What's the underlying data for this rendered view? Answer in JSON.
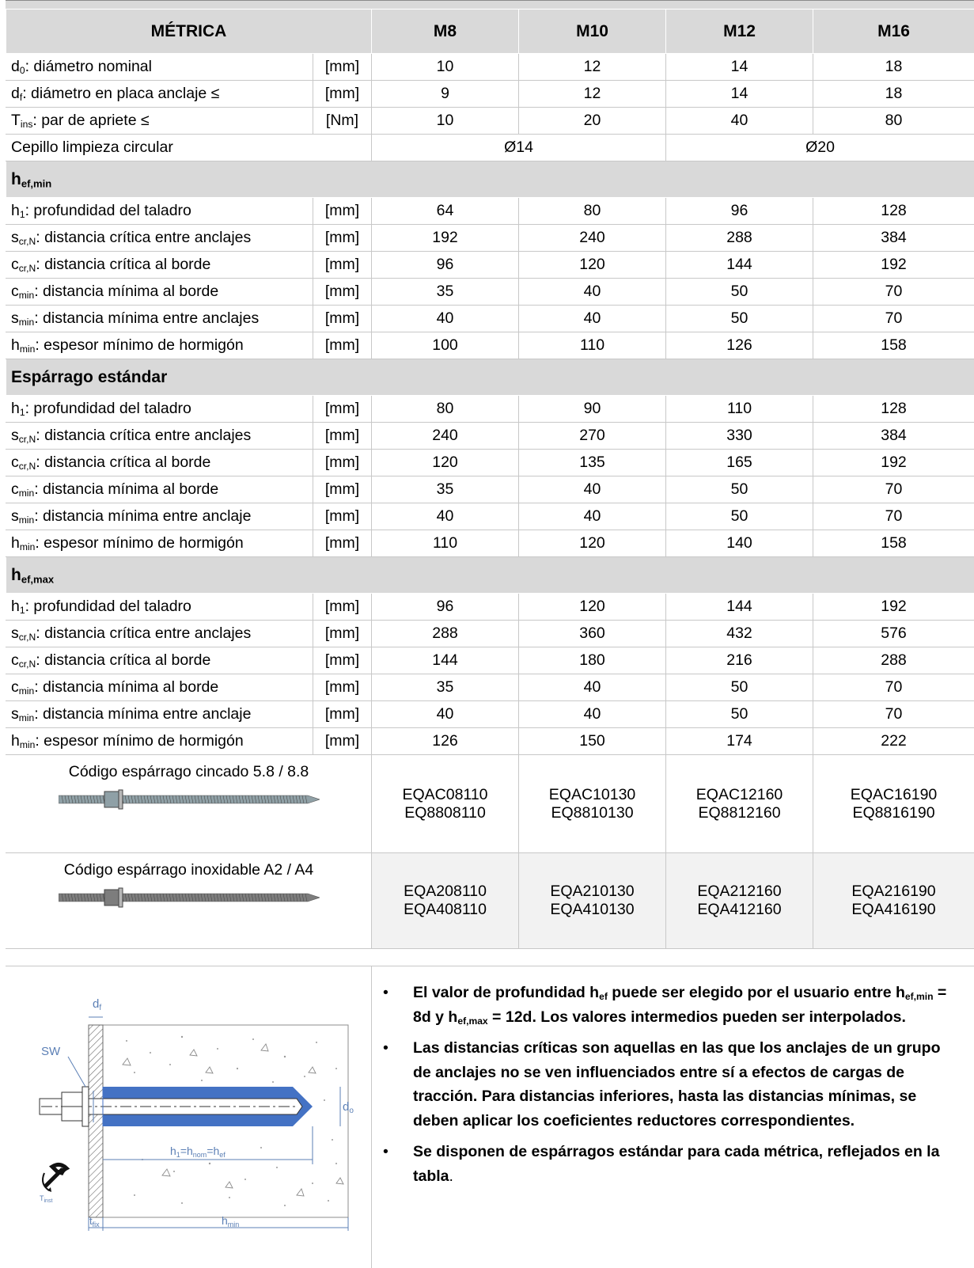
{
  "header": {
    "metric": "MÉTRICA",
    "cols": [
      "M8",
      "M10",
      "M12",
      "M16"
    ]
  },
  "basic_rows": [
    {
      "sym": "d",
      "sub": "0",
      "text": ": diámetro nominal",
      "unit": "[mm]",
      "vals": [
        "10",
        "12",
        "14",
        "18"
      ]
    },
    {
      "sym": "d",
      "sub": "f",
      "text": ": diámetro en placa anclaje ≤",
      "unit": "[mm]",
      "vals": [
        "9",
        "12",
        "14",
        "18"
      ]
    },
    {
      "sym": "T",
      "sub": "ins",
      "text": ": par de apriete ≤",
      "unit": "[Nm]",
      "vals": [
        "10",
        "20",
        "40",
        "80"
      ]
    }
  ],
  "brush": {
    "label": "Cepillo limpieza circular",
    "small": "Ø14",
    "large": "Ø20"
  },
  "sections": [
    {
      "title": "h",
      "title_sub": "ef,min",
      "rows": [
        {
          "sym": "h",
          "sub": "1",
          "text": ": profundidad del taladro",
          "unit": "[mm]",
          "vals": [
            "64",
            "80",
            "96",
            "128"
          ]
        },
        {
          "sym": "s",
          "sub": "cr,N",
          "text": ": distancia crítica entre anclajes",
          "unit": "[mm]",
          "vals": [
            "192",
            "240",
            "288",
            "384"
          ]
        },
        {
          "sym": "c",
          "sub": "cr,N",
          "text": ": distancia crítica al borde",
          "unit": "[mm]",
          "vals": [
            "96",
            "120",
            "144",
            "192"
          ]
        },
        {
          "sym": "c",
          "sub": "min",
          "text": ": distancia mínima al borde",
          "unit": "[mm]",
          "vals": [
            "35",
            "40",
            "50",
            "70"
          ]
        },
        {
          "sym": "s",
          "sub": "min",
          "text": ": distancia mínima entre anclajes",
          "unit": "[mm]",
          "vals": [
            "40",
            "40",
            "50",
            "70"
          ]
        },
        {
          "sym": "h",
          "sub": "min",
          "text": ": espesor mínimo de hormigón",
          "unit": "[mm]",
          "vals": [
            "100",
            "110",
            "126",
            "158"
          ]
        }
      ]
    },
    {
      "title": "Espárrago estándar",
      "title_sub": "",
      "rows": [
        {
          "sym": "h",
          "sub": "1",
          "text": ": profundidad del taladro",
          "unit": "[mm]",
          "vals": [
            "80",
            "90",
            "110",
            "128"
          ]
        },
        {
          "sym": "s",
          "sub": "cr,N",
          "text": ": distancia crítica entre anclajes",
          "unit": "[mm]",
          "vals": [
            "240",
            "270",
            "330",
            "384"
          ]
        },
        {
          "sym": "c",
          "sub": "cr,N",
          "text": ": distancia crítica al borde",
          "unit": "[mm]",
          "vals": [
            "120",
            "135",
            "165",
            "192"
          ]
        },
        {
          "sym": "c",
          "sub": "min",
          "text": ": distancia mínima al borde",
          "unit": "[mm]",
          "vals": [
            "35",
            "40",
            "50",
            "70"
          ]
        },
        {
          "sym": "s",
          "sub": "min",
          "text": ": distancia mínima entre anclaje",
          "unit": "[mm]",
          "vals": [
            "40",
            "40",
            "50",
            "70"
          ]
        },
        {
          "sym": "h",
          "sub": "min",
          "text": ": espesor mínimo de hormigón",
          "unit": "[mm]",
          "vals": [
            "110",
            "120",
            "140",
            "158"
          ]
        }
      ]
    },
    {
      "title": "h",
      "title_sub": "ef,max",
      "rows": [
        {
          "sym": "h",
          "sub": "1",
          "text": ": profundidad del taladro",
          "unit": "[mm]",
          "vals": [
            "96",
            "120",
            "144",
            "192"
          ]
        },
        {
          "sym": "s",
          "sub": "cr,N",
          "text": ": distancia crítica entre anclajes",
          "unit": "[mm]",
          "vals": [
            "288",
            "360",
            "432",
            "576"
          ]
        },
        {
          "sym": "c",
          "sub": "cr,N",
          "text": ": distancia crítica al borde",
          "unit": "[mm]",
          "vals": [
            "144",
            "180",
            "216",
            "288"
          ]
        },
        {
          "sym": "c",
          "sub": "min",
          "text": ": distancia mínima al borde",
          "unit": "[mm]",
          "vals": [
            "35",
            "40",
            "50",
            "70"
          ]
        },
        {
          "sym": "s",
          "sub": "min",
          "text": ": distancia mínima entre anclaje",
          "unit": "[mm]",
          "vals": [
            "40",
            "40",
            "50",
            "70"
          ]
        },
        {
          "sym": "h",
          "sub": "min",
          "text": ": espesor mínimo de hormigón",
          "unit": "[mm]",
          "vals": [
            "126",
            "150",
            "174",
            "222"
          ]
        }
      ]
    }
  ],
  "codes": [
    {
      "caption": "Código espárrago cincado 5.8 / 8.8",
      "rod_color": "#8fa0a6",
      "codes": [
        [
          "EQAC08110",
          "EQ8808110"
        ],
        [
          "EQAC10130",
          "EQ8810130"
        ],
        [
          "EQAC12160",
          "EQ8812160"
        ],
        [
          "EQAC16190",
          "EQ8816190"
        ]
      ]
    },
    {
      "caption": "Código espárrago inoxidable A2 / A4",
      "rod_color": "#7d7d7d",
      "codes": [
        [
          "EQA208110",
          "EQA408110"
        ],
        [
          "EQA210130",
          "EQA410130"
        ],
        [
          "EQA212160",
          "EQA412160"
        ],
        [
          "EQA216190",
          "EQA416190"
        ]
      ]
    }
  ],
  "diagram": {
    "df": "d",
    "df_sub": "f",
    "sw": "SW",
    "d0": "d",
    "d0_sub": "o",
    "h1": "h",
    "h1_sub": "1",
    "hnom": "h",
    "hnom_sub": "nom",
    "hef": "h",
    "hef_sub": "ef",
    "tfix": "t",
    "tfix_sub": "fix",
    "hmin": "h",
    "hmin_sub": "min",
    "tinst": "T",
    "tinst_sub": "inst"
  },
  "notes": {
    "n1_a": "El valor de profundidad h",
    "n1_sub1": "ef",
    "n1_b": " puede ser elegido por el usuario entre ",
    "n1_c": "h",
    "n1_sub2": "ef,min",
    "n1_d": " = 8d y  h",
    "n1_sub3": "ef,max",
    "n1_e": " = 12d. Los valores intermedios pueden ser interpolados.",
    "n2": "Las distancias críticas son aquellas en las que los anclajes de un grupo de anclajes no se ven influenciados entre sí a efectos de cargas de tracción. Para distancias inferiores, hasta las distancias mínimas, se deben aplicar los coeficientes reductores correspondientes.",
    "n3_a": "Se disponen de espárragos estándar para cada métrica, reflejados en la tabla",
    "n3_b": "."
  },
  "colors": {
    "header_bg": "#d9d9d9",
    "grid": "#c8c8c8",
    "hole_blue": "#4472c4",
    "drawing_blue": "#5b7fb5"
  }
}
